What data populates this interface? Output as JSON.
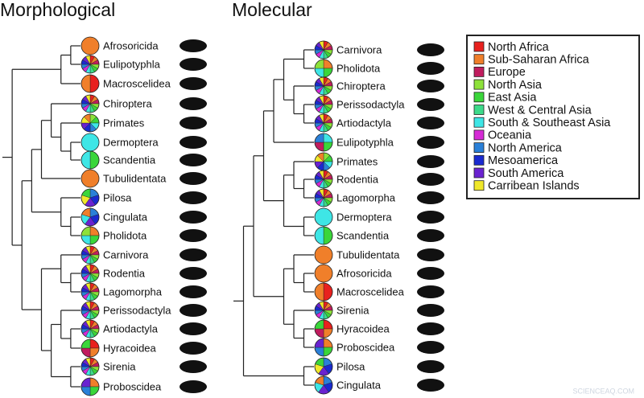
{
  "morphological": {
    "title": "Morphological",
    "taxa": [
      "Afrosoricida",
      "Eulipotyphla",
      "Macroscelidea",
      "Chiroptera",
      "Primates",
      "Dermoptera",
      "Scandentia",
      "Tubulidentata",
      "Pilosa",
      "Cingulata",
      "Pholidota",
      "Carnivora",
      "Rodentia",
      "Lagomorpha",
      "Perissodactyla",
      "Artiodactyla",
      "Hyracoidea",
      "Sirenia",
      "Proboscidea"
    ]
  },
  "molecular": {
    "title": "Molecular",
    "taxa": [
      "Carnivora",
      "Pholidota",
      "Chiroptera",
      "Perissodactyla",
      "Artiodactyla",
      "Eulipotyphla",
      "Primates",
      "Rodentia",
      "Lagomorpha",
      "Dermoptera",
      "Scandentia",
      "Tubulidentata",
      "Afrosoricida",
      "Macroscelidea",
      "Sirenia",
      "Hyracoidea",
      "Proboscidea",
      "Pilosa",
      "Cingulata"
    ]
  },
  "legend": {
    "items": [
      {
        "label": "North Africa",
        "color": "#e8211e"
      },
      {
        "label": "Sub-Saharan Africa",
        "color": "#f07f2a"
      },
      {
        "label": "Europe",
        "color": "#c01c5e"
      },
      {
        "label": "North Asia",
        "color": "#8de13a"
      },
      {
        "label": "East Asia",
        "color": "#3ad63a"
      },
      {
        "label": "West & Central Asia",
        "color": "#3dda8a"
      },
      {
        "label": "South & Southeast Asia",
        "color": "#3ee6e6"
      },
      {
        "label": "Oceania",
        "color": "#d62ad6"
      },
      {
        "label": "North America",
        "color": "#2a80d8"
      },
      {
        "label": "Mesoamerica",
        "color": "#1a2ad0"
      },
      {
        "label": "South America",
        "color": "#6a22d0"
      },
      {
        "label": "Carribean Islands",
        "color": "#f0e82a"
      }
    ]
  },
  "watermark": "SCIENCEAQ.COM"
}
